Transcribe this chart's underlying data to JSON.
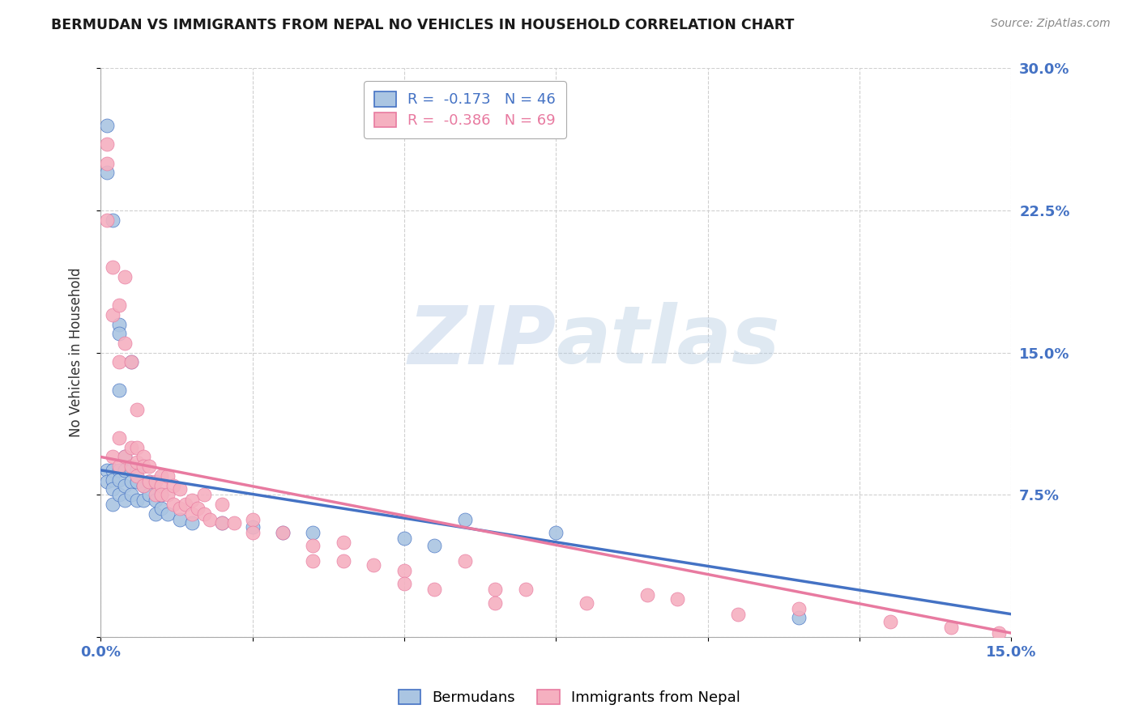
{
  "title": "BERMUDAN VS IMMIGRANTS FROM NEPAL NO VEHICLES IN HOUSEHOLD CORRELATION CHART",
  "source": "Source: ZipAtlas.com",
  "ylabel": "No Vehicles in Household",
  "yticks": [
    0.0,
    0.075,
    0.15,
    0.225,
    0.3
  ],
  "ytick_labels": [
    "",
    "7.5%",
    "15.0%",
    "22.5%",
    "30.0%"
  ],
  "blue_R": "-0.173",
  "blue_N": "46",
  "pink_R": "-0.386",
  "pink_N": "69",
  "blue_color": "#aac5e2",
  "pink_color": "#f5b0c0",
  "blue_line_color": "#4472c4",
  "pink_line_color": "#e87aa0",
  "legend_label_blue": "Bermudans",
  "legend_label_pink": "Immigrants from Nepal",
  "blue_scatter_x": [
    0.001,
    0.001,
    0.001,
    0.001,
    0.002,
    0.002,
    0.002,
    0.002,
    0.002,
    0.003,
    0.003,
    0.003,
    0.003,
    0.003,
    0.003,
    0.004,
    0.004,
    0.004,
    0.004,
    0.005,
    0.005,
    0.005,
    0.005,
    0.006,
    0.006,
    0.006,
    0.007,
    0.007,
    0.008,
    0.008,
    0.009,
    0.009,
    0.01,
    0.01,
    0.011,
    0.013,
    0.015,
    0.02,
    0.025,
    0.03,
    0.035,
    0.05,
    0.055,
    0.06,
    0.075,
    0.115
  ],
  "blue_scatter_y": [
    0.27,
    0.245,
    0.088,
    0.082,
    0.22,
    0.088,
    0.083,
    0.078,
    0.07,
    0.165,
    0.16,
    0.13,
    0.088,
    0.083,
    0.075,
    0.095,
    0.088,
    0.08,
    0.072,
    0.145,
    0.088,
    0.082,
    0.075,
    0.088,
    0.082,
    0.072,
    0.08,
    0.072,
    0.082,
    0.075,
    0.072,
    0.065,
    0.075,
    0.068,
    0.065,
    0.062,
    0.06,
    0.06,
    0.058,
    0.055,
    0.055,
    0.052,
    0.048,
    0.062,
    0.055,
    0.01
  ],
  "pink_scatter_x": [
    0.001,
    0.001,
    0.001,
    0.002,
    0.002,
    0.002,
    0.003,
    0.003,
    0.003,
    0.003,
    0.004,
    0.004,
    0.004,
    0.005,
    0.005,
    0.005,
    0.006,
    0.006,
    0.006,
    0.006,
    0.007,
    0.007,
    0.007,
    0.008,
    0.008,
    0.009,
    0.009,
    0.01,
    0.01,
    0.01,
    0.011,
    0.011,
    0.012,
    0.012,
    0.013,
    0.013,
    0.014,
    0.015,
    0.015,
    0.016,
    0.017,
    0.017,
    0.018,
    0.02,
    0.02,
    0.022,
    0.025,
    0.025,
    0.03,
    0.035,
    0.035,
    0.04,
    0.04,
    0.045,
    0.05,
    0.05,
    0.055,
    0.06,
    0.065,
    0.065,
    0.07,
    0.08,
    0.09,
    0.095,
    0.105,
    0.115,
    0.13,
    0.14,
    0.148
  ],
  "pink_scatter_y": [
    0.26,
    0.25,
    0.22,
    0.195,
    0.17,
    0.095,
    0.175,
    0.145,
    0.105,
    0.09,
    0.19,
    0.155,
    0.095,
    0.145,
    0.1,
    0.09,
    0.12,
    0.1,
    0.092,
    0.085,
    0.095,
    0.09,
    0.08,
    0.09,
    0.082,
    0.082,
    0.075,
    0.085,
    0.08,
    0.075,
    0.085,
    0.075,
    0.08,
    0.07,
    0.078,
    0.068,
    0.07,
    0.072,
    0.065,
    0.068,
    0.075,
    0.065,
    0.062,
    0.07,
    0.06,
    0.06,
    0.062,
    0.055,
    0.055,
    0.048,
    0.04,
    0.05,
    0.04,
    0.038,
    0.035,
    0.028,
    0.025,
    0.04,
    0.025,
    0.018,
    0.025,
    0.018,
    0.022,
    0.02,
    0.012,
    0.015,
    0.008,
    0.005,
    0.002
  ],
  "xmin": 0.0,
  "xmax": 0.15,
  "ymin": 0.0,
  "ymax": 0.3,
  "blue_line_x": [
    0.0,
    0.15
  ],
  "blue_line_y": [
    0.088,
    0.012
  ],
  "pink_line_x": [
    0.0,
    0.15
  ],
  "pink_line_y": [
    0.095,
    0.002
  ],
  "watermark_zip": "ZIP",
  "watermark_atlas": "atlas",
  "background_color": "#ffffff",
  "grid_color": "#d0d0d0"
}
